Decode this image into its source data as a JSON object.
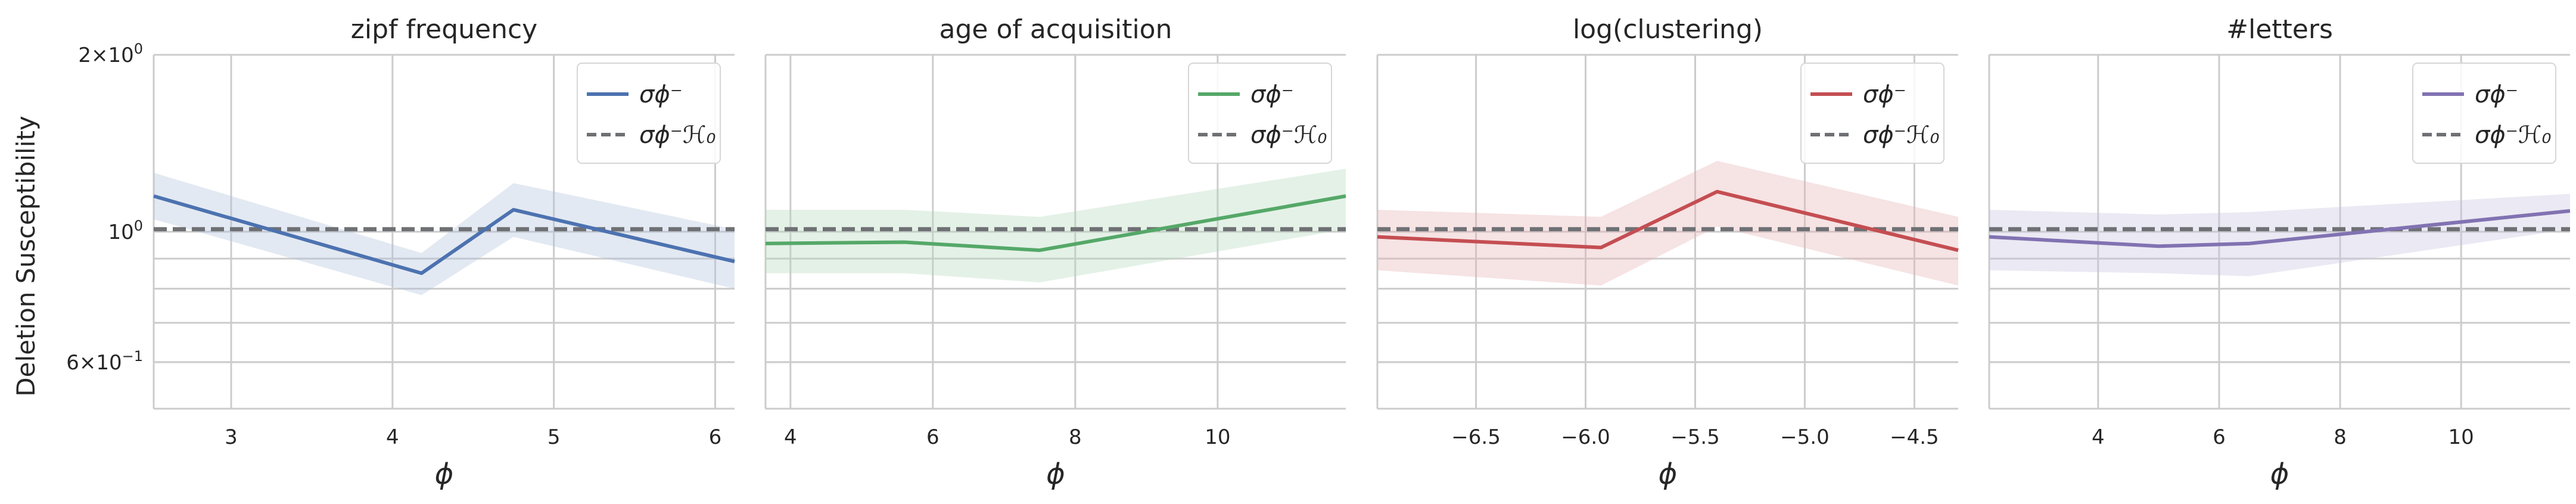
{
  "figure": {
    "ylabel": "Deletion Susceptibility",
    "yscale": "log",
    "ylim": [
      0.5,
      2.0
    ],
    "yticks_major": [
      {
        "value": 2.0,
        "base": "2×10",
        "exp": "0"
      },
      {
        "value": 1.0,
        "base": "10",
        "exp": "0"
      },
      {
        "value": 0.6,
        "base": "6×10",
        "exp": "−1"
      }
    ],
    "yticks_minor": [
      0.9,
      0.8,
      0.7,
      0.6
    ],
    "grid": true
  },
  "chart_data": [
    {
      "type": "line",
      "title": "zipf frequency",
      "xlabel": "ϕ",
      "xlim": [
        2.52,
        6.12
      ],
      "xticks": [
        3,
        4,
        5,
        6
      ],
      "xtick_labels": [
        "3",
        "4",
        "5",
        "6"
      ],
      "color": "#4c72b0",
      "legend_position": "upper right",
      "series": [
        {
          "name": "σϕ⁻",
          "style": "solid",
          "x": [
            2.52,
            4.18,
            4.75,
            6.12
          ],
          "y": [
            1.15,
            0.85,
            1.09,
            0.89
          ],
          "ci_low": [
            1.05,
            0.78,
            0.98,
            0.8
          ],
          "ci_high": [
            1.26,
            0.92,
            1.21,
            1.01
          ]
        },
        {
          "name": "σϕ⁻ℋ₀",
          "style": "dashed",
          "x": [
            2.52,
            6.12
          ],
          "y": [
            1.01,
            1.01
          ]
        }
      ]
    },
    {
      "type": "line",
      "title": "age of acquisition",
      "xlabel": "ϕ",
      "xlim": [
        3.65,
        11.8
      ],
      "xticks": [
        4,
        6,
        8,
        10
      ],
      "xtick_labels": [
        "4",
        "6",
        "8",
        "10"
      ],
      "color": "#55a868",
      "legend_position": "upper right",
      "series": [
        {
          "name": "σϕ⁻",
          "style": "solid",
          "x": [
            3.65,
            5.6,
            7.5,
            11.8
          ],
          "y": [
            0.955,
            0.96,
            0.93,
            1.15
          ],
          "ci_low": [
            0.85,
            0.85,
            0.82,
            1.01
          ],
          "ci_high": [
            1.09,
            1.09,
            1.06,
            1.28
          ]
        },
        {
          "name": "σϕ⁻ℋ₀",
          "style": "dashed",
          "x": [
            3.65,
            11.8
          ],
          "y": [
            1.01,
            1.01
          ]
        }
      ]
    },
    {
      "type": "line",
      "title": "log(clustering)",
      "xlabel": "ϕ",
      "xlim": [
        -6.95,
        -4.3
      ],
      "xticks": [
        -6.5,
        -6.0,
        -5.5,
        -5.0,
        -4.5
      ],
      "xtick_labels": [
        "−6.5",
        "−6.0",
        "−5.5",
        "−5.0",
        "−4.5"
      ],
      "color": "#c44e52",
      "legend_position": "upper right",
      "series": [
        {
          "name": "σϕ⁻",
          "style": "solid",
          "x": [
            -6.95,
            -5.93,
            -5.4,
            -4.3
          ],
          "y": [
            0.98,
            0.94,
            1.17,
            0.93
          ],
          "ci_low": [
            0.86,
            0.81,
            1.02,
            0.81
          ],
          "ci_high": [
            1.09,
            1.06,
            1.32,
            1.06
          ]
        },
        {
          "name": "σϕ⁻ℋ₀",
          "style": "dashed",
          "x": [
            -6.95,
            -4.3
          ],
          "y": [
            1.01,
            1.01
          ]
        }
      ]
    },
    {
      "type": "line",
      "title": "#letters",
      "xlabel": "ϕ",
      "xlim": [
        2.2,
        11.8
      ],
      "xticks": [
        4,
        6,
        8,
        10
      ],
      "xtick_labels": [
        "4",
        "6",
        "8",
        "10"
      ],
      "color": "#8172b2",
      "legend_position": "upper right",
      "series": [
        {
          "name": "σϕ⁻",
          "style": "solid",
          "x": [
            2.2,
            5.0,
            6.5,
            11.8
          ],
          "y": [
            0.98,
            0.945,
            0.955,
            1.085
          ],
          "ci_low": [
            0.86,
            0.85,
            0.84,
            1.01
          ],
          "ci_high": [
            1.09,
            1.07,
            1.08,
            1.16
          ]
        },
        {
          "name": "σϕ⁻ℋ₀",
          "style": "dashed",
          "x": [
            2.2,
            11.8
          ],
          "y": [
            1.01,
            1.01
          ]
        }
      ]
    }
  ]
}
